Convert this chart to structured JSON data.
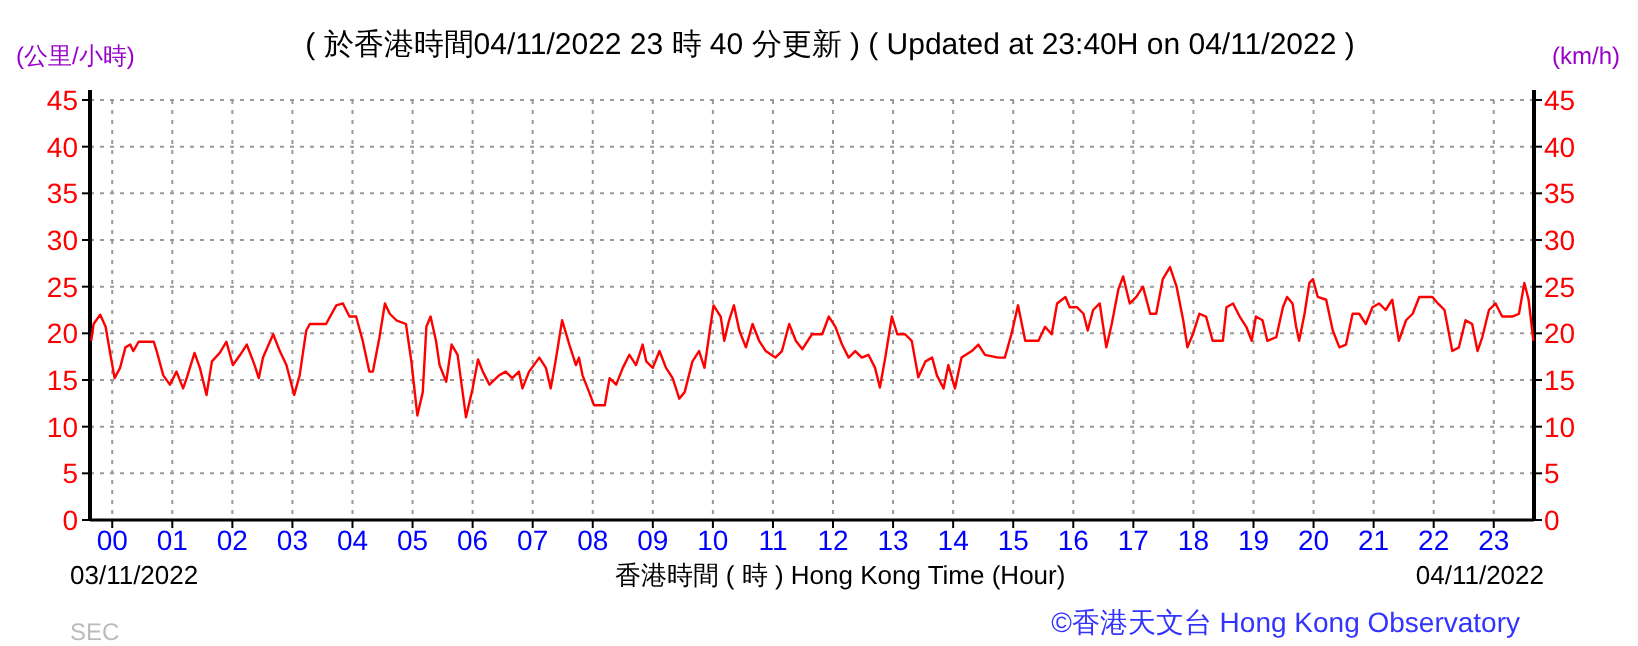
{
  "chart_data": {
    "type": "line",
    "title": "( 於香港時間04/11/2022 23 時 40 分更新 ) ( Updated at 23:40H on 04/11/2022 )",
    "ylabel": "(公里/小時)",
    "y2label": "(km/h)",
    "xlabel": "香港時間 ( 時 ) Hong Kong Time (Hour)",
    "annotations": [
      "03/11/2022",
      "04/11/2022",
      "©香港天文台 Hong Kong Observatory",
      "SEC"
    ],
    "xlim": [
      -0.37,
      23.67
    ],
    "xticks": [
      {
        "value": 0,
        "label": "00"
      },
      {
        "value": 1,
        "label": "01"
      },
      {
        "value": 2,
        "label": "02"
      },
      {
        "value": 3,
        "label": "03"
      },
      {
        "value": 4,
        "label": "04"
      },
      {
        "value": 5,
        "label": "05"
      },
      {
        "value": 6,
        "label": "06"
      },
      {
        "value": 7,
        "label": "07"
      },
      {
        "value": 8,
        "label": "08"
      },
      {
        "value": 9,
        "label": "09"
      },
      {
        "value": 10,
        "label": "10"
      },
      {
        "value": 11,
        "label": "11"
      },
      {
        "value": 12,
        "label": "12"
      },
      {
        "value": 13,
        "label": "13"
      },
      {
        "value": 14,
        "label": "14"
      },
      {
        "value": 15,
        "label": "15"
      },
      {
        "value": 16,
        "label": "16"
      },
      {
        "value": 17,
        "label": "17"
      },
      {
        "value": 18,
        "label": "18"
      },
      {
        "value": 19,
        "label": "19"
      },
      {
        "value": 20,
        "label": "20"
      },
      {
        "value": 21,
        "label": "21"
      },
      {
        "value": 22,
        "label": "22"
      },
      {
        "value": 23,
        "label": "23"
      }
    ],
    "ylim": [
      0,
      45
    ],
    "yticks": [
      0,
      5,
      10,
      15,
      20,
      25,
      30,
      35,
      40,
      45
    ],
    "y2lim": [
      0,
      45
    ],
    "y2ticks": [
      0,
      5,
      10,
      15,
      20,
      25,
      30,
      35,
      40,
      45
    ],
    "grid": true,
    "marker": "none",
    "line_style": "solid",
    "series": [
      {
        "color": "#ff0000",
        "x": [
          -0.35,
          -0.31,
          -0.2,
          -0.11,
          -0.03,
          0.04,
          0.13,
          0.22,
          0.3,
          0.35,
          0.44,
          0.69,
          0.74,
          0.85,
          0.96,
          1.07,
          1.18,
          1.24,
          1.37,
          1.46,
          1.57,
          1.66,
          1.79,
          1.9,
          2.01,
          2.13,
          2.24,
          2.37,
          2.44,
          2.51,
          2.68,
          2.79,
          2.9,
          3.03,
          3.12,
          3.23,
          3.29,
          3.56,
          3.73,
          3.84,
          3.95,
          4.06,
          4.17,
          4.28,
          4.34,
          4.45,
          4.54,
          4.62,
          4.73,
          4.89,
          4.98,
          5.08,
          5.17,
          5.23,
          5.3,
          5.39,
          5.45,
          5.56,
          5.65,
          5.75,
          5.89,
          6.0,
          6.09,
          6.17,
          6.28,
          6.44,
          6.55,
          6.66,
          6.77,
          6.83,
          6.94,
          7.11,
          7.22,
          7.3,
          7.38,
          7.49,
          7.61,
          7.72,
          7.77,
          7.83,
          7.94,
          8.02,
          8.2,
          8.28,
          8.39,
          8.5,
          8.61,
          8.72,
          8.83,
          8.89,
          9.0,
          9.11,
          9.22,
          9.33,
          9.44,
          9.53,
          9.66,
          9.77,
          9.86,
          9.94,
          10.01,
          10.13,
          10.19,
          10.27,
          10.35,
          10.44,
          10.55,
          10.66,
          10.77,
          10.88,
          11.04,
          11.15,
          11.27,
          11.38,
          11.49,
          11.65,
          11.82,
          11.93,
          12.04,
          12.15,
          12.26,
          12.37,
          12.48,
          12.59,
          12.7,
          12.78,
          12.87,
          12.98,
          13.07,
          13.2,
          13.31,
          13.42,
          13.54,
          13.65,
          13.73,
          13.84,
          13.92,
          14.03,
          14.14,
          14.31,
          14.42,
          14.53,
          14.75,
          14.86,
          14.97,
          15.08,
          15.2,
          15.42,
          15.53,
          15.64,
          15.73,
          15.87,
          15.94,
          16.06,
          16.17,
          16.24,
          16.33,
          16.44,
          16.55,
          16.64,
          16.75,
          16.83,
          16.94,
          17.05,
          17.16,
          17.28,
          17.38,
          17.49,
          17.61,
          17.72,
          17.83,
          17.9,
          17.99,
          18.1,
          18.21,
          18.32,
          18.49,
          18.55,
          18.66,
          18.77,
          18.88,
          18.97,
          19.04,
          19.15,
          19.23,
          19.38,
          19.49,
          19.56,
          19.65,
          19.71,
          19.76,
          19.85,
          19.93,
          19.99,
          20.07,
          20.21,
          20.32,
          20.43,
          20.54,
          20.65,
          20.76,
          20.87,
          20.98,
          21.09,
          21.2,
          21.31,
          21.42,
          21.54,
          21.65,
          21.76,
          21.98,
          22.07,
          22.18,
          22.31,
          22.42,
          22.53,
          22.64,
          22.73,
          22.81,
          22.92,
          23.03,
          23.14,
          23.31,
          23.42,
          23.51,
          23.58,
          23.66
        ],
        "values": [
          19.2,
          21,
          22,
          20.7,
          17.7,
          15.2,
          16.3,
          18.5,
          18.8,
          18.1,
          19.1,
          19.1,
          18.1,
          15.5,
          14.5,
          15.9,
          14.1,
          15.2,
          17.9,
          16.3,
          13.4,
          17,
          17.9,
          19.1,
          16.6,
          17.7,
          18.8,
          16.6,
          15.2,
          17.4,
          19.9,
          18.1,
          16.6,
          13.4,
          15.5,
          20.3,
          21,
          21,
          23,
          23.2,
          21.8,
          21.8,
          19.2,
          15.9,
          15.9,
          19.6,
          23.2,
          22.1,
          21.4,
          21,
          17,
          11.2,
          13.7,
          20.7,
          21.8,
          19.2,
          16.6,
          14.8,
          18.8,
          17.7,
          11,
          14.1,
          17.2,
          15.9,
          14.5,
          15.5,
          15.9,
          15.2,
          15.9,
          14.1,
          15.9,
          17.4,
          16.3,
          14.1,
          17,
          21.4,
          18.8,
          16.6,
          17.4,
          15.5,
          13.7,
          12.3,
          12.3,
          15.2,
          14.5,
          16.3,
          17.7,
          16.6,
          18.8,
          17,
          16.3,
          18.1,
          16.3,
          15.2,
          13,
          13.7,
          17,
          18.1,
          16.3,
          19.9,
          23,
          21.8,
          19.2,
          21.4,
          23,
          20.3,
          18.5,
          21,
          19.2,
          18.1,
          17.4,
          18.1,
          21,
          19.2,
          18.3,
          19.9,
          19.9,
          21.8,
          20.7,
          18.8,
          17.4,
          18.1,
          17.4,
          17.7,
          16.3,
          14.2,
          17.4,
          21.8,
          19.9,
          19.9,
          19.2,
          15.3,
          17,
          17.4,
          15.5,
          14.1,
          16.6,
          14.1,
          17.4,
          18.1,
          18.8,
          17.7,
          17.4,
          17.4,
          19.9,
          23,
          19.2,
          19.2,
          20.7,
          19.9,
          23.2,
          23.9,
          22.8,
          22.8,
          22.1,
          20.3,
          22.5,
          23.2,
          18.5,
          21,
          24.7,
          26.1,
          23.2,
          23.9,
          25,
          22.1,
          22.1,
          25.8,
          27.1,
          25,
          21.4,
          18.5,
          19.9,
          22.1,
          21.8,
          19.2,
          19.2,
          22.8,
          23.2,
          21.8,
          20.7,
          19.2,
          21.8,
          21.4,
          19.2,
          19.6,
          22.8,
          23.9,
          23.2,
          20.7,
          19.2,
          22.1,
          25.4,
          25.8,
          23.9,
          23.6,
          20.3,
          18.5,
          18.8,
          22.1,
          22.1,
          21,
          22.8,
          23.2,
          22.5,
          23.6,
          19.2,
          21.4,
          22.1,
          23.9,
          23.9,
          23.2,
          22.5,
          18.1,
          18.5,
          21.4,
          21,
          18.1,
          19.6,
          22.5,
          23.2,
          21.8,
          21.8,
          22.1,
          25.4,
          23.6,
          19.2
        ]
      }
    ]
  }
}
